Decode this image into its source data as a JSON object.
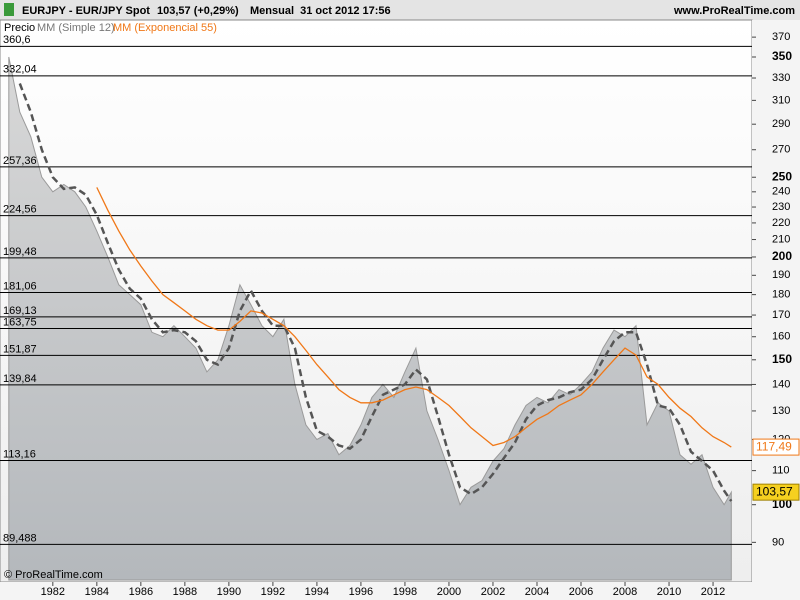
{
  "chart_data": {
    "type": "line",
    "title": "EURJPY - EUR/JPY Spot",
    "quote": "103,57 (+0,29%)",
    "period": "Mensual  31 oct 2012 17:56",
    "source": "www.ProRealTime.com",
    "footer": "© ProRealTime.com",
    "log_scale": true,
    "xlim": [
      1979.6,
      2013.77
    ],
    "xticks": [
      1982,
      1984,
      1986,
      1988,
      1990,
      1992,
      1994,
      1996,
      1998,
      2000,
      2002,
      2004,
      2006,
      2008,
      2010,
      2012
    ],
    "ylim": [
      81,
      386
    ],
    "yticks": [
      90,
      100,
      110,
      120,
      130,
      140,
      150,
      160,
      170,
      180,
      190,
      200,
      210,
      220,
      230,
      240,
      250,
      270,
      290,
      310,
      330,
      350,
      370
    ],
    "levels": [
      {
        "value": 360.6,
        "label": "360,6"
      },
      {
        "value": 332.04,
        "label": "332,04"
      },
      {
        "value": 257.36,
        "label": "257,36"
      },
      {
        "value": 224.56,
        "label": "224,56"
      },
      {
        "value": 199.48,
        "label": "199,48"
      },
      {
        "value": 181.06,
        "label": "181,06"
      },
      {
        "value": 169.13,
        "label": "169,13"
      },
      {
        "value": 163.75,
        "label": "163,75"
      },
      {
        "value": 151.87,
        "label": "151,87"
      },
      {
        "value": 139.84,
        "label": "139,84"
      },
      {
        "value": 113.16,
        "label": "113,16"
      },
      {
        "value": 89.488,
        "label": "89,488"
      }
    ],
    "x": [
      1980,
      1980.5,
      1981,
      1981.5,
      1982,
      1982.5,
      1983,
      1983.5,
      1984,
      1984.5,
      1985,
      1985.5,
      1986,
      1986.5,
      1987,
      1987.5,
      1988,
      1988.5,
      1989,
      1989.5,
      1990,
      1990.5,
      1991,
      1991.5,
      1992,
      1992.5,
      1993,
      1993.5,
      1994,
      1994.5,
      1995,
      1995.5,
      1996,
      1996.5,
      1997,
      1997.5,
      1998,
      1998.5,
      1999,
      1999.5,
      2000,
      2000.5,
      2001,
      2001.5,
      2002,
      2002.5,
      2003,
      2003.5,
      2004,
      2004.5,
      2005,
      2005.5,
      2006,
      2006.5,
      2007,
      2007.5,
      2008,
      2008.5,
      2009,
      2009.5,
      2010,
      2010.5,
      2011,
      2011.5,
      2012,
      2012.5,
      2012.83
    ],
    "series": [
      {
        "name": "Precio",
        "color": "#9a9a9a",
        "style": "area",
        "last_label": "103,57",
        "values": [
          350,
          300,
          280,
          250,
          240,
          245,
          240,
          230,
          215,
          200,
          185,
          180,
          175,
          162,
          160,
          165,
          160,
          155,
          145,
          150,
          165,
          185,
          175,
          165,
          160,
          168,
          140,
          125,
          120,
          122,
          115,
          118,
          125,
          135,
          140,
          135,
          145,
          155,
          130,
          120,
          110,
          100,
          105,
          107,
          113,
          117,
          125,
          132,
          135,
          133,
          138,
          136,
          140,
          145,
          155,
          163,
          160,
          165,
          125,
          133,
          130,
          115,
          112,
          115,
          105,
          100,
          103.57
        ]
      },
      {
        "name": "MM (Simple 12)",
        "color": "#555555",
        "style": "dashed",
        "values": [
          null,
          325,
          300,
          270,
          250,
          242,
          243,
          238,
          225,
          208,
          193,
          183,
          178,
          168,
          162,
          163,
          162,
          158,
          150,
          148,
          155,
          172,
          182,
          172,
          165,
          165,
          155,
          135,
          123,
          121,
          118,
          117,
          120,
          128,
          136,
          138,
          140,
          146,
          142,
          128,
          115,
          105,
          103,
          105,
          109,
          114,
          119,
          127,
          132,
          134,
          135,
          137,
          138,
          142,
          150,
          158,
          162,
          162,
          148,
          132,
          131,
          125,
          116,
          113,
          110,
          104,
          101
        ]
      },
      {
        "name": "MM (Exponencial 55)",
        "color": "#f07818",
        "style": "solid",
        "last_label": "117,49",
        "values": [
          null,
          null,
          null,
          null,
          null,
          null,
          null,
          null,
          243,
          228,
          215,
          204,
          195,
          187,
          180,
          176,
          172,
          168,
          165,
          163,
          163,
          167,
          172,
          171,
          168,
          165,
          160,
          154,
          148,
          143,
          138,
          135,
          133,
          133,
          134,
          136,
          138,
          139,
          138,
          135,
          132,
          128,
          124,
          121,
          118,
          119,
          121,
          124,
          127,
          129,
          132,
          134,
          136,
          140,
          145,
          150,
          155,
          152,
          143,
          140,
          135,
          131,
          128,
          124,
          121,
          119,
          117.49
        ]
      }
    ]
  }
}
